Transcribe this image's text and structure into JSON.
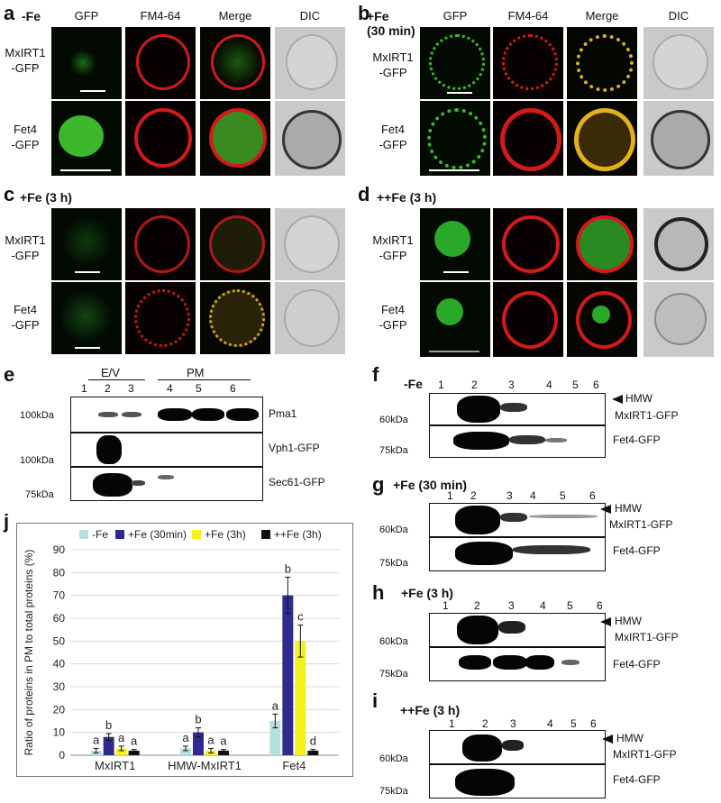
{
  "panels": {
    "a": {
      "letter": "a",
      "condition": "-Fe"
    },
    "b": {
      "letter": "b",
      "condition": "+Fe\n(30 min)"
    },
    "c": {
      "letter": "c",
      "condition": "+Fe (3 h)"
    },
    "d": {
      "letter": "d",
      "condition": "++Fe (3 h)"
    },
    "e": {
      "letter": "e"
    },
    "f": {
      "letter": "f",
      "condition": "-Fe"
    },
    "g": {
      "letter": "g",
      "condition": "+Fe (30 min)"
    },
    "h": {
      "letter": "h",
      "condition": "+Fe (3 h)"
    },
    "i": {
      "letter": "i",
      "condition": "++Fe (3 h)"
    },
    "j": {
      "letter": "j"
    }
  },
  "micro_columns": [
    "GFP",
    "FM4-64",
    "Merge",
    "DIC"
  ],
  "micro_rows": [
    "MxIRT1\n-GFP",
    "Fet4\n-GFP"
  ],
  "blot_e": {
    "groups": [
      "E/V",
      "PM"
    ],
    "lanes": [
      "1",
      "2",
      "3",
      "4",
      "5",
      "6"
    ],
    "markers": [
      "100kDa",
      "100kDa",
      "75kDa"
    ],
    "labels": [
      "Pma1",
      "Vph1-GFP",
      "Sec61-GFP"
    ]
  },
  "blot_fghi": {
    "lanes": [
      "1",
      "2",
      "3",
      "4",
      "5",
      "6"
    ],
    "markers": [
      "60kDa",
      "75kDa"
    ],
    "labels": [
      "HMW",
      "MxIRT1-GFP",
      "Fet4-GFP"
    ]
  },
  "chart_data": {
    "type": "bar",
    "ylabel": "Ratio of proteins in PM to total proteins (%)",
    "ylim": [
      0,
      90
    ],
    "yticks": [
      0,
      10,
      20,
      30,
      40,
      50,
      60,
      70,
      80,
      90
    ],
    "categories": [
      "MxIRT1",
      "HMW-MxIRT1",
      "Fet4"
    ],
    "legend_position": "top",
    "series": [
      {
        "name": "-Fe",
        "color": "#b5e0e0",
        "values": [
          2,
          3,
          15
        ],
        "errors": [
          1,
          1,
          3
        ],
        "letters": [
          "a",
          "a",
          "a"
        ]
      },
      {
        "name": "+Fe (30min)",
        "color": "#2e2a8e",
        "values": [
          8,
          10,
          70
        ],
        "errors": [
          1.5,
          2,
          8
        ],
        "letters": [
          "b",
          "b",
          "b"
        ]
      },
      {
        "name": "+Fe (3h)",
        "color": "#f5f01e",
        "values": [
          3,
          2,
          50
        ],
        "errors": [
          1,
          1,
          7
        ],
        "letters": [
          "a",
          "a",
          "c"
        ]
      },
      {
        "name": "++Fe (3h)",
        "color": "#111111",
        "values": [
          2,
          2,
          2
        ],
        "errors": [
          0.5,
          0.5,
          0.5
        ],
        "letters": [
          "a",
          "a",
          "d"
        ]
      }
    ]
  }
}
